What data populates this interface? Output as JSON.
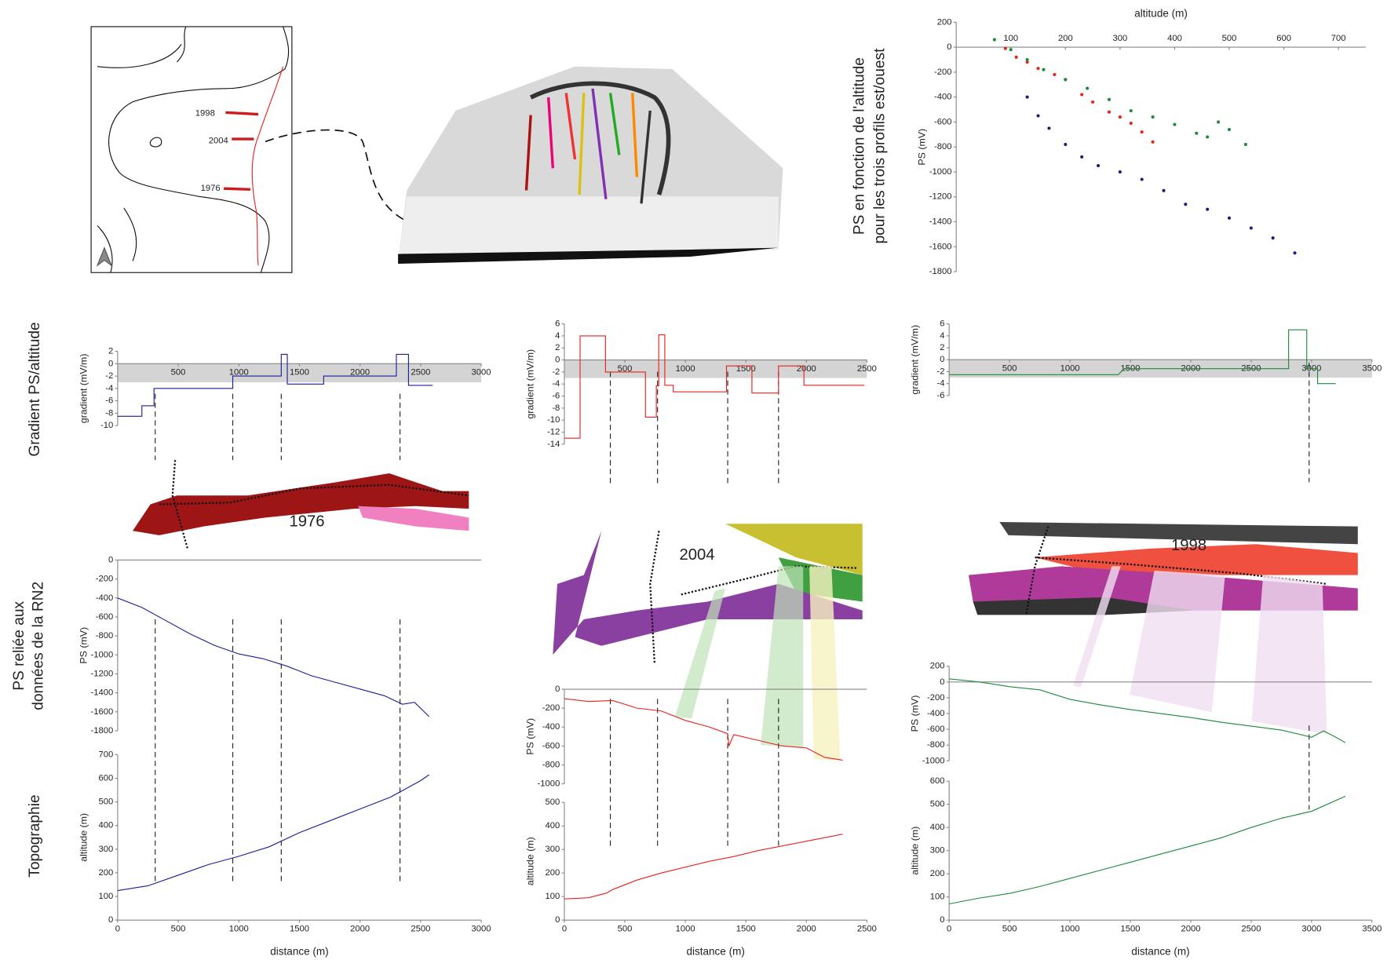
{
  "chart_data": [
    {
      "type": "scatter",
      "title_lines": [
        "PS en fonction de l'altitude",
        "pour les trois profils est/ouest"
      ],
      "x_label": "altitude (m)",
      "y_label": "PS (mV)",
      "xlim": [
        0,
        750
      ],
      "xticks": [
        100,
        200,
        300,
        400,
        500,
        600,
        700
      ],
      "ylim": [
        -1800,
        200
      ],
      "yticks": [
        200,
        0,
        -200,
        -400,
        -600,
        -800,
        -1000,
        -1200,
        -1400,
        -1600,
        -1800
      ],
      "series": [
        {
          "color": "#1c1c7a",
          "x": [
            130,
            150,
            170,
            200,
            230,
            260,
            300,
            340,
            380,
            420,
            460,
            500,
            540,
            580,
            620
          ],
          "values": [
            -400,
            -550,
            -650,
            -780,
            -880,
            -950,
            -1000,
            -1060,
            -1150,
            -1260,
            -1300,
            -1370,
            -1450,
            -1530,
            -1650
          ]
        },
        {
          "color": "#e8221c",
          "x": [
            90,
            110,
            130,
            150,
            180,
            200,
            230,
            250,
            280,
            300,
            320,
            340,
            360
          ],
          "values": [
            -10,
            -80,
            -120,
            -170,
            -220,
            -260,
            -380,
            -440,
            -520,
            -560,
            -610,
            -680,
            -760
          ]
        },
        {
          "color": "#1e8a3a",
          "x": [
            70,
            100,
            130,
            160,
            200,
            240,
            280,
            320,
            360,
            400,
            440,
            460,
            480,
            500,
            530
          ],
          "values": [
            60,
            -20,
            -100,
            -180,
            -260,
            -330,
            -420,
            -510,
            -560,
            -620,
            -690,
            -720,
            -600,
            -660,
            -780
          ]
        }
      ]
    },
    {
      "type": "line",
      "y_label": "gradient (mV/m)",
      "xlim": [
        0,
        3000
      ],
      "xticks": [
        500,
        1000,
        1500,
        2000,
        2500,
        3000
      ],
      "ylim": [
        -10,
        2
      ],
      "yticks": [
        2,
        0,
        -2,
        -4,
        -6,
        -8,
        -10
      ],
      "shaded_band": [
        -3,
        0
      ],
      "markers": [
        310,
        950,
        1350,
        2330
      ],
      "series": [
        {
          "color": "#1c1c9a",
          "x": [
            0,
            200,
            200,
            300,
            300,
            950,
            950,
            1350,
            1350,
            1400,
            1400,
            1700,
            1700,
            2300,
            2300,
            2400,
            2400,
            2600
          ],
          "values": [
            -8.5,
            -8.5,
            -6.8,
            -6.8,
            -4,
            -4,
            -2,
            -2,
            1.5,
            1.5,
            -3.3,
            -3.3,
            -2,
            -2,
            1.5,
            1.5,
            -3.5,
            -3.5
          ]
        }
      ]
    },
    {
      "type": "line",
      "y_label": "gradient (mV/m)",
      "xlim": [
        0,
        2500
      ],
      "xticks": [
        500,
        1000,
        1500,
        2000,
        2500
      ],
      "ylim": [
        -14,
        6
      ],
      "yticks": [
        6,
        4,
        2,
        0,
        -2,
        -4,
        -6,
        -8,
        -10,
        -12,
        -14
      ],
      "shaded_band": [
        -3,
        0
      ],
      "markers": [
        380,
        770,
        1350,
        1770
      ],
      "series": [
        {
          "color": "#e8221c",
          "x": [
            0,
            130,
            130,
            340,
            340,
            670,
            670,
            760,
            760,
            780,
            780,
            830,
            830,
            900,
            900,
            1340,
            1340,
            1550,
            1550,
            1770,
            1770,
            1980,
            1980,
            2480
          ],
          "values": [
            -13,
            -13,
            4,
            4,
            -2,
            -2,
            -9.5,
            -9.5,
            -4.3,
            -4.3,
            4.2,
            4.2,
            -4.2,
            -4.2,
            -5.3,
            -5.3,
            -1,
            -1,
            -5.5,
            -5.5,
            -1,
            -1,
            -4.2,
            -4.2
          ]
        }
      ]
    },
    {
      "type": "line",
      "y_label": "gradient (mV/m)",
      "xlim": [
        0,
        3500
      ],
      "xticks": [
        500,
        1000,
        1500,
        2000,
        2500,
        3000,
        3500
      ],
      "ylim": [
        -6,
        6
      ],
      "yticks": [
        6,
        4,
        2,
        0,
        -2,
        -4,
        -6
      ],
      "shaded_band": [
        -3,
        0
      ],
      "markers": [
        2980
      ],
      "series": [
        {
          "color": "#1e8a3a",
          "x": [
            0,
            1400,
            1450,
            2810,
            2810,
            2960,
            2960,
            3050,
            3050,
            3200
          ],
          "values": [
            -2.5,
            -2.5,
            -1.5,
            -1.5,
            5,
            5,
            -1.5,
            -1.5,
            -4,
            -4
          ]
        }
      ]
    },
    {
      "type": "line",
      "y_label": "PS (mV)",
      "xlim": [
        0,
        3000
      ],
      "ylim": [
        -1800,
        0
      ],
      "yticks": [
        0,
        -200,
        -400,
        -600,
        -800,
        -1000,
        -1200,
        -1400,
        -1600,
        -1800
      ],
      "series": [
        {
          "color": "#1c1c9a",
          "x": [
            0,
            200,
            400,
            600,
            800,
            1000,
            1200,
            1400,
            1600,
            1800,
            2000,
            2200,
            2350,
            2450,
            2570
          ],
          "values": [
            -400,
            -500,
            -640,
            -780,
            -900,
            -990,
            -1040,
            -1120,
            -1220,
            -1290,
            -1360,
            -1430,
            -1520,
            -1500,
            -1650
          ]
        }
      ]
    },
    {
      "type": "line",
      "y_label": "PS (mV)",
      "xlim": [
        0,
        2500
      ],
      "ylim": [
        -1000,
        0
      ],
      "yticks": [
        0,
        -200,
        -400,
        -600,
        -800,
        -1000
      ],
      "series": [
        {
          "color": "#e8221c",
          "x": [
            0,
            200,
            400,
            600,
            800,
            1000,
            1200,
            1350,
            1360,
            1400,
            1600,
            1800,
            2000,
            2150,
            2300
          ],
          "values": [
            -100,
            -130,
            -120,
            -200,
            -230,
            -330,
            -400,
            -470,
            -600,
            -480,
            -540,
            -600,
            -620,
            -720,
            -750
          ]
        }
      ]
    },
    {
      "type": "line",
      "y_label": "PS (mV)",
      "xlim": [
        0,
        3500
      ],
      "ylim": [
        -1000,
        200
      ],
      "yticks": [
        200,
        0,
        -200,
        -400,
        -600,
        -800,
        -1000
      ],
      "series": [
        {
          "color": "#1e8a3a",
          "x": [
            0,
            250,
            500,
            750,
            1000,
            1250,
            1500,
            1750,
            2000,
            2250,
            2500,
            2750,
            3000,
            3100,
            3200,
            3280
          ],
          "values": [
            40,
            0,
            -60,
            -100,
            -220,
            -290,
            -350,
            -400,
            -450,
            -510,
            -560,
            -610,
            -700,
            -620,
            -700,
            -770
          ]
        }
      ]
    },
    {
      "type": "line",
      "y_label": "altitude (m)",
      "x_label": "distance (m)",
      "xlim": [
        0,
        3000
      ],
      "xticks": [
        0,
        500,
        1000,
        1500,
        2000,
        2500,
        3000
      ],
      "ylim": [
        0,
        700
      ],
      "yticks": [
        0,
        100,
        200,
        300,
        400,
        500,
        600,
        700
      ],
      "series": [
        {
          "color": "#1c1c9a",
          "x": [
            0,
            250,
            500,
            750,
            1000,
            1250,
            1500,
            1750,
            2000,
            2250,
            2500,
            2570
          ],
          "values": [
            125,
            145,
            190,
            235,
            270,
            310,
            370,
            420,
            470,
            520,
            590,
            615
          ]
        }
      ]
    },
    {
      "type": "line",
      "y_label": "altitude (m)",
      "x_label": "distance (m)",
      "xlim": [
        0,
        2500
      ],
      "xticks": [
        0,
        500,
        1000,
        1500,
        2000,
        2500
      ],
      "ylim": [
        0,
        500
      ],
      "yticks": [
        0,
        100,
        200,
        300,
        400,
        500
      ],
      "series": [
        {
          "color": "#e8221c",
          "x": [
            0,
            200,
            350,
            400,
            600,
            800,
            1000,
            1200,
            1400,
            1600,
            1800,
            2000,
            2300
          ],
          "values": [
            90,
            95,
            115,
            130,
            170,
            200,
            225,
            250,
            270,
            295,
            315,
            335,
            365
          ]
        }
      ]
    },
    {
      "type": "line",
      "y_label": "altitude (m)",
      "x_label": "distance (m)",
      "xlim": [
        0,
        3500
      ],
      "xticks": [
        0,
        500,
        1000,
        1500,
        2000,
        2500,
        3000,
        3500
      ],
      "ylim": [
        0,
        600
      ],
      "yticks": [
        0,
        100,
        200,
        300,
        400,
        500,
        600
      ],
      "series": [
        {
          "color": "#1e8a3a",
          "x": [
            0,
            250,
            500,
            750,
            1000,
            1250,
            1500,
            1750,
            2000,
            2250,
            2500,
            2750,
            3000,
            3280
          ],
          "values": [
            70,
            95,
            115,
            145,
            180,
            215,
            250,
            285,
            320,
            355,
            400,
            440,
            470,
            535
          ]
        }
      ]
    }
  ],
  "row_labels": {
    "gradient": "Gradient PS/altitude",
    "ps": [
      "PS reliée aux",
      "données de la RN2"
    ],
    "topo": "Topographie"
  },
  "map_labels": [
    "1998",
    "2004",
    "1976"
  ],
  "flow_labels": [
    "1976",
    "2004",
    "1998"
  ]
}
